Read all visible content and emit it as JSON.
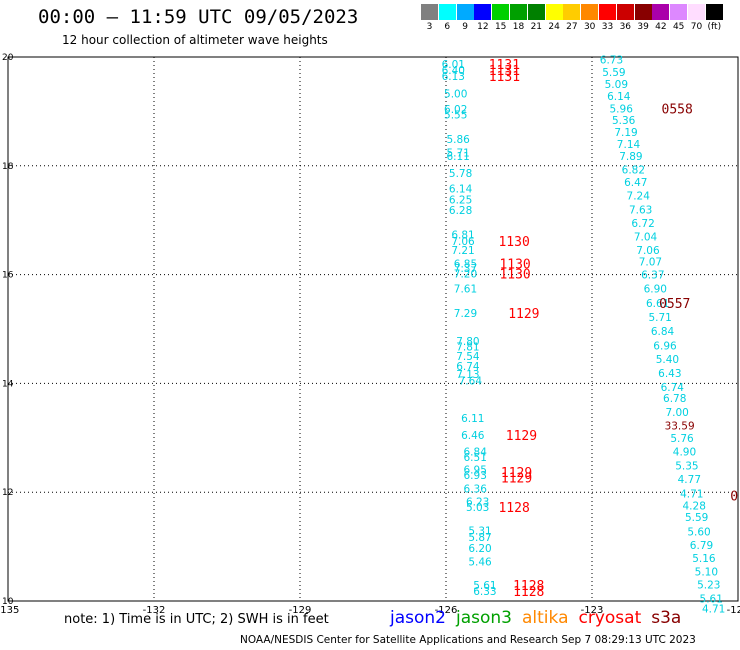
{
  "header": {
    "title": "00:00 – 11:59 UTC 09/05/2023",
    "subtitle": "12 hour collection of altimeter wave heights"
  },
  "colorbar": {
    "units_label": "(ft)",
    "stops": [
      {
        "label": "3",
        "color": "#808080"
      },
      {
        "label": "6",
        "color": "#00ffff"
      },
      {
        "label": "9",
        "color": "#00aaff"
      },
      {
        "label": "12",
        "color": "#0000ff"
      },
      {
        "label": "15",
        "color": "#00d000"
      },
      {
        "label": "18",
        "color": "#00a000"
      },
      {
        "label": "21",
        "color": "#008000"
      },
      {
        "label": "24",
        "color": "#ffff00"
      },
      {
        "label": "27",
        "color": "#ffcc00"
      },
      {
        "label": "30",
        "color": "#ff8800"
      },
      {
        "label": "33",
        "color": "#ff0000"
      },
      {
        "label": "36",
        "color": "#cc0000"
      },
      {
        "label": "39",
        "color": "#880000"
      },
      {
        "label": "42",
        "color": "#aa00aa"
      },
      {
        "label": "45",
        "color": "#dd88ff"
      },
      {
        "label": "70",
        "color": "#ffddff"
      },
      {
        "label": "(ft)",
        "color": "#000000"
      }
    ]
  },
  "footer": {
    "note": "note:  1) Time is in UTC;  2) SWH is in feet",
    "missions": [
      {
        "label": "jason2",
        "color": "#0000ff"
      },
      {
        "label": "jason3",
        "color": "#00a000"
      },
      {
        "label": "altika",
        "color": "#ff8800"
      },
      {
        "label": "cryosat",
        "color": "#ff0000"
      },
      {
        "label": "s3a",
        "color": "#880000"
      }
    ],
    "credit": "NOAA/NESDIS Center for Satellite Applications and Research    Sep  7 08:29:13 UTC 2023"
  },
  "chart_data": {
    "type": "scatter",
    "title": "00:00 – 11:59 UTC 09/05/2023",
    "subtitle": "12 hour collection of altimeter wave heights",
    "xlim": [
      -135,
      -120
    ],
    "ylim": [
      10,
      20
    ],
    "x_ticks": [
      -135,
      -132,
      -129,
      -126,
      -123,
      -120
    ],
    "x_tick_labels": [
      "-135",
      "-132",
      "-129",
      "-126",
      "-123",
      "-120"
    ],
    "y_ticks": [
      10,
      12,
      14,
      16,
      18,
      20
    ],
    "y_tick_labels": [
      "10",
      "12",
      "14",
      "16",
      "18",
      "20"
    ],
    "grid": true,
    "value_color": "#00d0e0",
    "time_color": "#ff0000",
    "series": [
      {
        "name": "track-west",
        "points": [
          {
            "lon": -125.85,
            "lat": 19.87,
            "swh": "6.01"
          },
          {
            "lon": -125.85,
            "lat": 19.76,
            "swh": "6.40"
          },
          {
            "lon": -125.85,
            "lat": 19.65,
            "swh": "6.13"
          },
          {
            "lon": -125.8,
            "lat": 19.33,
            "swh": "5.00"
          },
          {
            "lon": -125.8,
            "lat": 19.04,
            "swh": "6.02"
          },
          {
            "lon": -125.8,
            "lat": 18.94,
            "swh": "5.55"
          },
          {
            "lon": -125.75,
            "lat": 18.49,
            "swh": "5.86"
          },
          {
            "lon": -125.75,
            "lat": 18.24,
            "swh": "5.71"
          },
          {
            "lon": -125.75,
            "lat": 18.18,
            "swh": "6.11"
          },
          {
            "lon": -125.7,
            "lat": 17.87,
            "swh": "5.78"
          },
          {
            "lon": -125.7,
            "lat": 17.58,
            "swh": "6.14"
          },
          {
            "lon": -125.7,
            "lat": 17.38,
            "swh": "6.25"
          },
          {
            "lon": -125.7,
            "lat": 17.19,
            "swh": "6.28"
          },
          {
            "lon": -125.65,
            "lat": 16.74,
            "swh": "6.81"
          },
          {
            "lon": -125.65,
            "lat": 16.62,
            "swh": "7.06"
          },
          {
            "lon": -125.65,
            "lat": 16.45,
            "swh": "7.21"
          },
          {
            "lon": -125.6,
            "lat": 16.2,
            "swh": "6.85"
          },
          {
            "lon": -125.6,
            "lat": 16.12,
            "swh": "7.37"
          },
          {
            "lon": -125.6,
            "lat": 16.02,
            "swh": "7.20"
          },
          {
            "lon": -125.6,
            "lat": 15.74,
            "swh": "7.61"
          },
          {
            "lon": -125.6,
            "lat": 15.29,
            "swh": "7.29"
          },
          {
            "lon": -125.55,
            "lat": 14.78,
            "swh": "7.80"
          },
          {
            "lon": -125.55,
            "lat": 14.68,
            "swh": "7.81"
          },
          {
            "lon": -125.55,
            "lat": 14.5,
            "swh": "7.54"
          },
          {
            "lon": -125.55,
            "lat": 14.32,
            "swh": "6.74"
          },
          {
            "lon": -125.55,
            "lat": 14.17,
            "swh": "7.13"
          },
          {
            "lon": -125.5,
            "lat": 14.05,
            "swh": "7.64"
          },
          {
            "lon": -125.45,
            "lat": 13.36,
            "swh": "6.11"
          },
          {
            "lon": -125.45,
            "lat": 13.05,
            "swh": "6.46"
          },
          {
            "lon": -125.4,
            "lat": 12.75,
            "swh": "6.84"
          },
          {
            "lon": -125.4,
            "lat": 12.65,
            "swh": "6.51"
          },
          {
            "lon": -125.4,
            "lat": 12.42,
            "swh": "6.95"
          },
          {
            "lon": -125.4,
            "lat": 12.32,
            "swh": "6.93"
          },
          {
            "lon": -125.4,
            "lat": 12.07,
            "swh": "6.36"
          },
          {
            "lon": -125.35,
            "lat": 11.83,
            "swh": "6.23"
          },
          {
            "lon": -125.35,
            "lat": 11.73,
            "swh": "5.03"
          },
          {
            "lon": -125.3,
            "lat": 11.3,
            "swh": "5.31"
          },
          {
            "lon": -125.3,
            "lat": 11.18,
            "swh": "5.87"
          },
          {
            "lon": -125.3,
            "lat": 10.97,
            "swh": "6.20"
          },
          {
            "lon": -125.3,
            "lat": 10.73,
            "swh": "5.46"
          },
          {
            "lon": -125.2,
            "lat": 10.29,
            "swh": "5.61"
          },
          {
            "lon": -125.2,
            "lat": 10.18,
            "swh": "6.33"
          }
        ]
      },
      {
        "name": "track-east",
        "points": [
          {
            "lon": -122.6,
            "lat": 19.95,
            "swh": "6.73"
          },
          {
            "lon": -122.55,
            "lat": 19.72,
            "swh": "5.59"
          },
          {
            "lon": -122.5,
            "lat": 19.5,
            "swh": "5.09"
          },
          {
            "lon": -122.45,
            "lat": 19.28,
            "swh": "6.14"
          },
          {
            "lon": -122.4,
            "lat": 19.05,
            "swh": "5.96"
          },
          {
            "lon": -122.35,
            "lat": 18.84,
            "swh": "5.36"
          },
          {
            "lon": -122.3,
            "lat": 18.62,
            "swh": "7.19"
          },
          {
            "lon": -122.25,
            "lat": 18.4,
            "swh": "7.14"
          },
          {
            "lon": -122.2,
            "lat": 18.18,
            "swh": "7.89"
          },
          {
            "lon": -122.15,
            "lat": 17.93,
            "swh": "6.82"
          },
          {
            "lon": -122.1,
            "lat": 17.7,
            "swh": "6.47"
          },
          {
            "lon": -122.05,
            "lat": 17.45,
            "swh": "7.24"
          },
          {
            "lon": -122.0,
            "lat": 17.2,
            "swh": "7.63"
          },
          {
            "lon": -121.95,
            "lat": 16.95,
            "swh": "6.72"
          },
          {
            "lon": -121.9,
            "lat": 16.7,
            "swh": "7.04"
          },
          {
            "lon": -121.85,
            "lat": 16.45,
            "swh": "7.06"
          },
          {
            "lon": -121.8,
            "lat": 16.24,
            "swh": "7.07"
          },
          {
            "lon": -121.75,
            "lat": 16.0,
            "swh": "6.37"
          },
          {
            "lon": -121.7,
            "lat": 15.74,
            "swh": "6.90"
          },
          {
            "lon": -121.65,
            "lat": 15.48,
            "swh": "6.61"
          },
          {
            "lon": -121.6,
            "lat": 15.22,
            "swh": "5.71"
          },
          {
            "lon": -121.55,
            "lat": 14.96,
            "swh": "6.84"
          },
          {
            "lon": -121.5,
            "lat": 14.7,
            "swh": "6.96"
          },
          {
            "lon": -121.45,
            "lat": 14.45,
            "swh": "5.40"
          },
          {
            "lon": -121.4,
            "lat": 14.19,
            "swh": "6.43"
          },
          {
            "lon": -121.35,
            "lat": 13.93,
            "swh": "6.74"
          },
          {
            "lon": -121.3,
            "lat": 13.73,
            "swh": "6.78"
          },
          {
            "lon": -121.25,
            "lat": 13.47,
            "swh": "7.00"
          },
          {
            "lon": -121.2,
            "lat": 13.23,
            "swh": "33.59",
            "color": "#880000"
          },
          {
            "lon": -121.15,
            "lat": 13.0,
            "swh": "5.76"
          },
          {
            "lon": -121.1,
            "lat": 12.75,
            "swh": "4.90"
          },
          {
            "lon": -121.05,
            "lat": 12.49,
            "swh": "5.35"
          },
          {
            "lon": -121.0,
            "lat": 12.24,
            "swh": "4.77"
          },
          {
            "lon": -120.95,
            "lat": 11.98,
            "swh": "4.71"
          },
          {
            "lon": -120.9,
            "lat": 11.76,
            "swh": "4.28"
          },
          {
            "lon": -120.85,
            "lat": 11.54,
            "swh": "5.59"
          },
          {
            "lon": -120.8,
            "lat": 11.28,
            "swh": "5.60"
          },
          {
            "lon": -120.75,
            "lat": 11.03,
            "swh": "6.79"
          },
          {
            "lon": -120.7,
            "lat": 10.79,
            "swh": "5.16"
          },
          {
            "lon": -120.65,
            "lat": 10.54,
            "swh": "5.10"
          },
          {
            "lon": -120.6,
            "lat": 10.3,
            "swh": "5.23"
          },
          {
            "lon": -120.55,
            "lat": 10.05,
            "swh": "5.61"
          },
          {
            "lon": -120.5,
            "lat": 9.86,
            "swh": "4.71"
          }
        ]
      }
    ],
    "time_labels": [
      {
        "lon": -124.8,
        "lat": 19.87,
        "text": "1131",
        "color": "#ff0000"
      },
      {
        "lon": -124.8,
        "lat": 19.76,
        "text": "1131",
        "color": "#ff0000"
      },
      {
        "lon": -124.8,
        "lat": 19.65,
        "text": "1131",
        "color": "#ff0000"
      },
      {
        "lon": -121.25,
        "lat": 19.05,
        "text": "0558",
        "color": "#880000"
      },
      {
        "lon": -124.6,
        "lat": 16.62,
        "text": "1130",
        "color": "#ff0000"
      },
      {
        "lon": -124.58,
        "lat": 16.2,
        "text": "1130",
        "color": "#ff0000"
      },
      {
        "lon": -124.58,
        "lat": 16.02,
        "text": "1130",
        "color": "#ff0000"
      },
      {
        "lon": -121.3,
        "lat": 15.48,
        "text": "0557",
        "color": "#880000"
      },
      {
        "lon": -124.4,
        "lat": 15.29,
        "text": "1129",
        "color": "#ff0000"
      },
      {
        "lon": -124.45,
        "lat": 13.05,
        "text": "1129",
        "color": "#ff0000"
      },
      {
        "lon": -124.55,
        "lat": 12.37,
        "text": "1129",
        "color": "#ff0000"
      },
      {
        "lon": -124.55,
        "lat": 12.27,
        "text": "1129",
        "color": "#ff0000"
      },
      {
        "lon": -124.6,
        "lat": 11.73,
        "text": "1128",
        "color": "#ff0000"
      },
      {
        "lon": -124.3,
        "lat": 10.29,
        "text": "1128",
        "color": "#ff0000"
      },
      {
        "lon": -124.3,
        "lat": 10.18,
        "text": "1128",
        "color": "#ff0000"
      },
      {
        "lon": -120.08,
        "lat": 11.94,
        "text": "0",
        "color": "#880000"
      }
    ]
  }
}
